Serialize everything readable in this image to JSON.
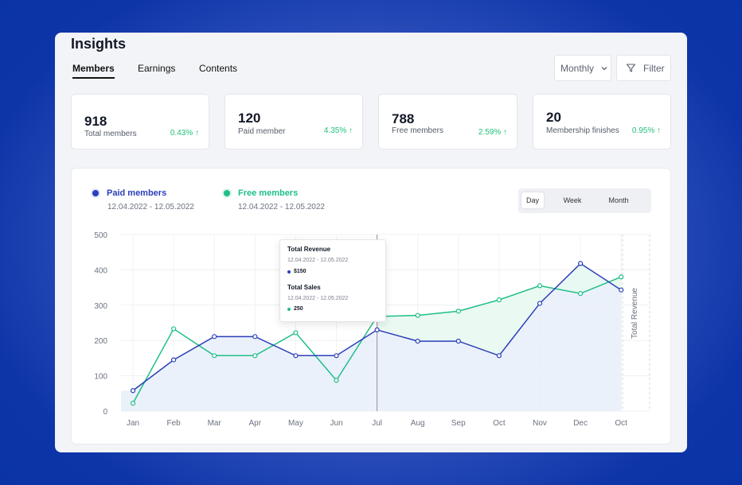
{
  "page": {
    "title": "Insights"
  },
  "tabs": [
    {
      "label": "Members",
      "active": true
    },
    {
      "label": "Earnings",
      "active": false
    },
    {
      "label": "Contents",
      "active": false
    }
  ],
  "controls": {
    "period_select": "Monthly",
    "filter_label": "Filter"
  },
  "stats": [
    {
      "value": "918",
      "label": "Total members",
      "change": "0.43% ↑"
    },
    {
      "value": "120",
      "label": "Paid member",
      "change": "4.35% ↑"
    },
    {
      "value": "788",
      "label": "Free members",
      "change": "2.59% ↑"
    },
    {
      "value": "20",
      "label": "Membership finishes",
      "change": "0.95% ↑"
    }
  ],
  "legend": {
    "paid": {
      "label": "Paid members",
      "range": "12.04.2022 - 12.05.2022",
      "color": "#2a3fb8"
    },
    "free": {
      "label": "Free members",
      "range": "12.04.2022 - 12.05.2022",
      "color": "#1fbf86"
    }
  },
  "range_toggle": {
    "day": "Day",
    "week": "Week",
    "month": "Month",
    "selected": "Day"
  },
  "tooltip": {
    "revenue_title": "Total Revenue",
    "revenue_range": "12.04.2022 - 12.05.2022",
    "revenue_value": "$150",
    "sales_title": "Total Sales",
    "sales_range": "12.04.2022 - 12.05.2022",
    "sales_value": "250"
  },
  "chart_data": {
    "type": "line",
    "categories": [
      "Jan",
      "Feb",
      "Mar",
      "Apr",
      "May",
      "Jun",
      "Jul",
      "Aug",
      "Sep",
      "Oct",
      "Nov",
      "Dec",
      "Oct"
    ],
    "ylim": [
      0,
      500
    ],
    "yticks": [
      0,
      100,
      200,
      300,
      400,
      500
    ],
    "y2label": "Total Revenue",
    "grid": true,
    "series": [
      {
        "name": "Paid members",
        "color": "#2a3fb8",
        "values": [
          58,
          145,
          211,
          211,
          157,
          157,
          230,
          198,
          198,
          157,
          305,
          418,
          343
        ]
      },
      {
        "name": "Free members",
        "color": "#1fbf86",
        "values": [
          22,
          233,
          157,
          157,
          222,
          87,
          268,
          271,
          283,
          315,
          355,
          333,
          380
        ]
      }
    ]
  }
}
